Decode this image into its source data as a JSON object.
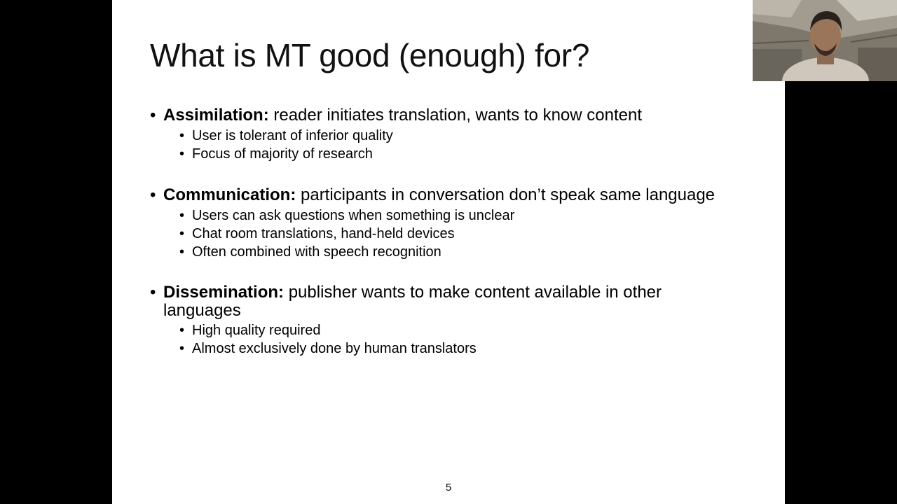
{
  "slide": {
    "title": "What is MT good (enough) for?",
    "page_number": "5",
    "bullet_glyph": "•",
    "sections": [
      {
        "keyword": "Assimilation:",
        "text": " reader initiates translation, wants to know content",
        "subitems": [
          "User is tolerant of inferior quality",
          "Focus of majority of research"
        ]
      },
      {
        "keyword": "Communication:",
        "text": " participants in conversation don’t speak same language",
        "subitems": [
          "Users can ask questions when something is unclear",
          "Chat room translations, hand-held devices",
          "Often combined with speech recognition"
        ]
      },
      {
        "keyword": "Dissemination:",
        "text": " publisher wants to make content available in other languages",
        "subitems": [
          "High quality required",
          "Almost exclusively done by human translators"
        ]
      }
    ]
  },
  "webcam": {
    "icon": "presenter-video-feed"
  }
}
